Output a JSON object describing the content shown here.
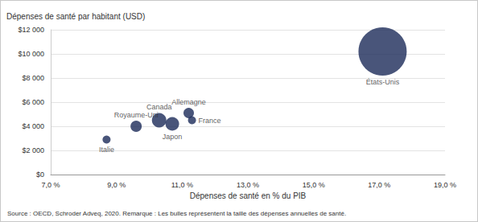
{
  "chart_data": {
    "type": "scatter",
    "title": "Dépenses de santé par habitant (USD)",
    "x_label": "Dépenses de santé en % du PIB",
    "source": "Source : OECD, Schroder Adveq, 2020. Remarque : Les bulles représentent la taille des dépenses annuelles de santé.",
    "categories": [
      "Italie",
      "Royaume-Uni",
      "Canada",
      "Japon",
      "Allemagne",
      "France",
      "États-Unis"
    ],
    "x": [
      8.7,
      9.6,
      10.3,
      10.7,
      11.2,
      11.3,
      17.1
    ],
    "values": [
      2900,
      4000,
      4500,
      4200,
      5100,
      4500,
      10200
    ],
    "sizes": [
      25,
      49,
      81,
      72,
      42,
      25,
      900
    ],
    "color": "#1c2b59",
    "marker": "circle",
    "grid": true,
    "xlim": [
      7,
      19
    ],
    "xticks": [
      {
        "value": 7,
        "label": "7,0 %"
      },
      {
        "value": 9,
        "label": "9,0 %"
      },
      {
        "value": 11,
        "label": "11,0 %"
      },
      {
        "value": 13,
        "label": "13,0 %"
      },
      {
        "value": 15,
        "label": "15,0 %"
      },
      {
        "value": 17,
        "label": "17,0 %"
      },
      {
        "value": 19,
        "label": "19,0 %"
      }
    ],
    "ylim": [
      0,
      12000
    ],
    "yticks": [
      {
        "value": 0,
        "label": "$0"
      },
      {
        "value": 2000,
        "label": "$2 000"
      },
      {
        "value": 4000,
        "label": "$4 000"
      },
      {
        "value": 6000,
        "label": "$6 000"
      },
      {
        "value": 8000,
        "label": "$8 000"
      },
      {
        "value": 10000,
        "label": "$10 000"
      },
      {
        "value": 12000,
        "label": "$12 000"
      }
    ]
  }
}
